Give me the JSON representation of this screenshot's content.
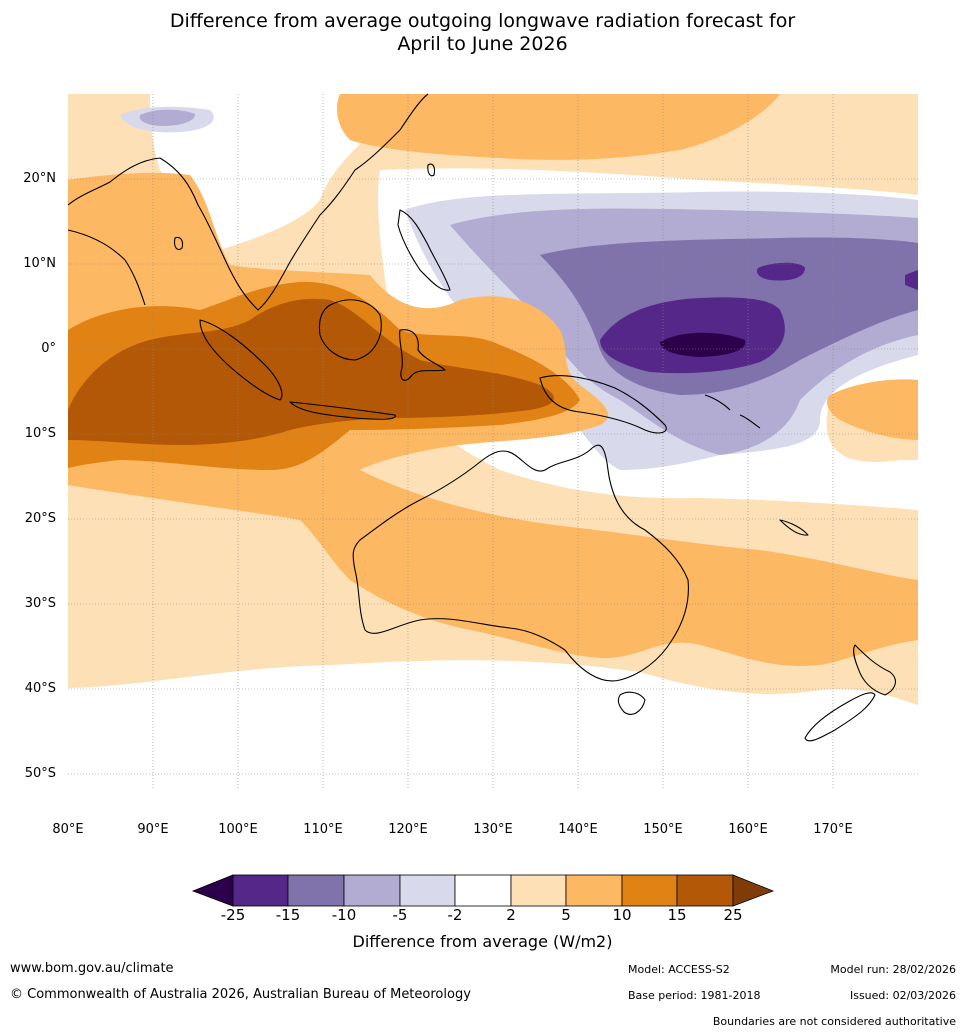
{
  "title": {
    "line1": "Difference from average outgoing longwave radiation forecast for",
    "line2": "April to June 2026"
  },
  "map": {
    "lat_labels": [
      "20°N",
      "10°N",
      "0°",
      "10°S",
      "20°S",
      "30°S",
      "40°S",
      "50°S"
    ],
    "lon_labels": [
      "80°E",
      "90°E",
      "100°E",
      "110°E",
      "120°E",
      "130°E",
      "140°E",
      "150°E",
      "160°E",
      "170°E"
    ]
  },
  "colorbar": {
    "ticks": [
      "-25",
      "-15",
      "-10",
      "-5",
      "-2",
      "2",
      "5",
      "10",
      "15",
      "25"
    ],
    "colors": [
      "#2d004b",
      "#542788",
      "#8073ac",
      "#b2abd2",
      "#d8daeb",
      "#ffffff",
      "#fee0b6",
      "#fdb863",
      "#e08214",
      "#b35806",
      "#7f3b08"
    ],
    "label": "Difference from average (W/m2)"
  },
  "footer": {
    "website": "www.bom.gov.au/climate",
    "copyright": "© Commonwealth of Australia 2026, Australian Bureau of Meteorology",
    "model": "Model: ACCESS-S2",
    "base_period": "Base period: 1981-2018",
    "model_run": "Model run: 28/02/2026",
    "issued": "Issued: 02/03/2026",
    "disclaimer": "Boundaries are not considered authoritative"
  }
}
